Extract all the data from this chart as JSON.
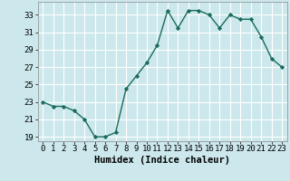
{
  "x": [
    0,
    1,
    2,
    3,
    4,
    5,
    6,
    7,
    8,
    9,
    10,
    11,
    12,
    13,
    14,
    15,
    16,
    17,
    18,
    19,
    20,
    21,
    22,
    23
  ],
  "y": [
    23,
    22.5,
    22.5,
    22,
    21,
    19,
    19,
    19.5,
    24.5,
    26,
    27.5,
    29.5,
    33.5,
    31.5,
    33.5,
    33.5,
    33,
    31.5,
    33,
    32.5,
    32.5,
    30.5,
    28,
    27
  ],
  "xlabel": "Humidex (Indice chaleur)",
  "ylim": [
    18.5,
    34.5
  ],
  "yticks": [
    19,
    21,
    23,
    25,
    27,
    29,
    31,
    33
  ],
  "xticks": [
    0,
    1,
    2,
    3,
    4,
    5,
    6,
    7,
    8,
    9,
    10,
    11,
    12,
    13,
    14,
    15,
    16,
    17,
    18,
    19,
    20,
    21,
    22,
    23
  ],
  "line_color": "#1a6b5a",
  "marker": "D",
  "marker_size": 2.2,
  "bg_color": "#cce8ec",
  "grid_color": "#ffffff",
  "tick_fontsize": 6.5,
  "label_fontsize": 7.5
}
